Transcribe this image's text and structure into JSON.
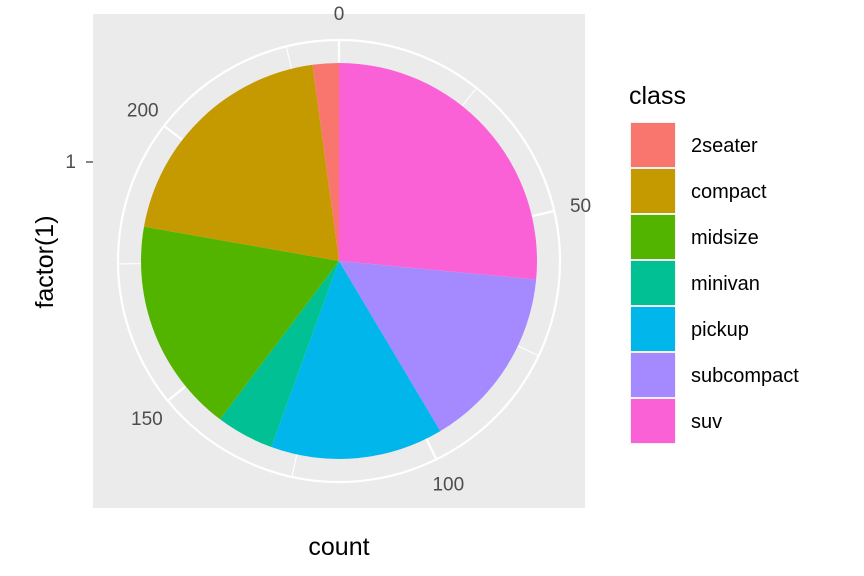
{
  "chart_data": {
    "type": "pie",
    "title": "",
    "xlabel": "count",
    "ylabel": "factor(1)",
    "y_tick_labels": [
      "1"
    ],
    "theta_ticks": [
      0,
      50,
      100,
      150,
      200
    ],
    "theta_tick_labels": [
      "0",
      "50",
      "100",
      "150",
      "200"
    ],
    "total": 234,
    "grid": true,
    "legend": {
      "title": "class",
      "position": "right"
    },
    "categories": [
      "2seater",
      "compact",
      "midsize",
      "minivan",
      "pickup",
      "subcompact",
      "suv"
    ],
    "values": [
      5,
      47,
      41,
      11,
      33,
      35,
      62
    ],
    "colors": [
      "#F8766D",
      "#C49A00",
      "#53B400",
      "#00C094",
      "#00B6EB",
      "#A58AFF",
      "#FB61D7"
    ]
  }
}
